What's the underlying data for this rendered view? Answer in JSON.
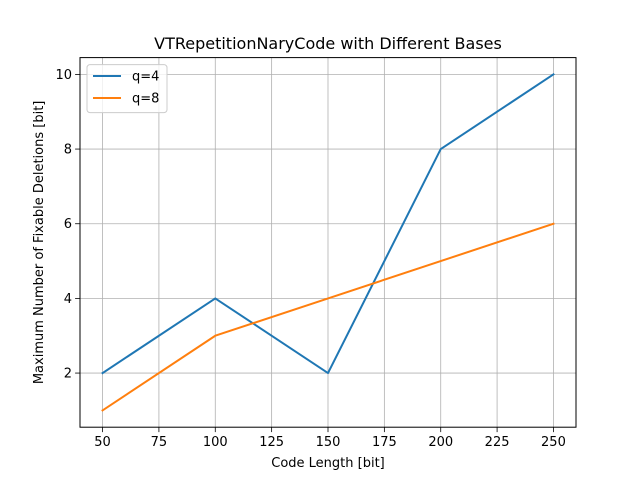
{
  "chart_data": {
    "type": "line",
    "title": "VTRepetitionNaryCode with Different Bases",
    "xlabel": "Code Length [bit]",
    "ylabel": "Maximum Number of Fixable Deletions [bit]",
    "x": [
      50,
      100,
      150,
      200,
      250
    ],
    "xlim": [
      40,
      260
    ],
    "ylim": [
      0.55,
      10.45
    ],
    "xticks": [
      50,
      75,
      100,
      125,
      150,
      175,
      200,
      225,
      250
    ],
    "yticks": [
      2,
      4,
      6,
      8,
      10
    ],
    "grid": true,
    "legend_position": "top-left",
    "series": [
      {
        "name": "q=4",
        "color": "#1f77b4",
        "values": [
          2,
          4,
          2,
          8,
          10
        ]
      },
      {
        "name": "q=8",
        "color": "#ff7f0e",
        "values": [
          1,
          3,
          4,
          5,
          6
        ]
      }
    ]
  }
}
